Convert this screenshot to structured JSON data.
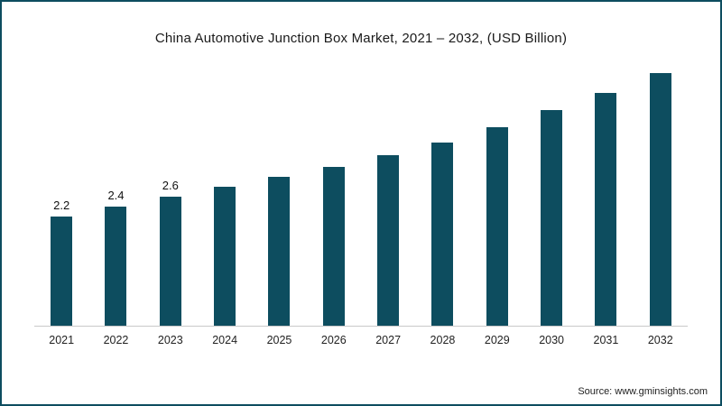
{
  "frame": {
    "border_color": "#0d4d5f"
  },
  "chart_data": {
    "type": "bar",
    "title": "China Automotive Junction Box Market, 2021 – 2032, (USD Billion)",
    "categories": [
      "2021",
      "2022",
      "2023",
      "2024",
      "2025",
      "2026",
      "2027",
      "2028",
      "2029",
      "2030",
      "2031",
      "2032"
    ],
    "values": [
      2.2,
      2.4,
      2.6,
      2.8,
      3.0,
      3.2,
      3.45,
      3.7,
      4.0,
      4.35,
      4.7,
      5.1
    ],
    "data_labels": [
      "2.2",
      "2.4",
      "2.6",
      "",
      "",
      "",
      "",
      "",
      "",
      "",
      "",
      ""
    ],
    "bar_color": "#0d4d5f",
    "xlabel": "",
    "ylabel": "",
    "ylim": [
      0,
      5.5
    ],
    "grid": false,
    "legend": "none",
    "axis_line_color": "#c9c9c9"
  },
  "source": {
    "label": "Source: www.gminsights.com"
  }
}
